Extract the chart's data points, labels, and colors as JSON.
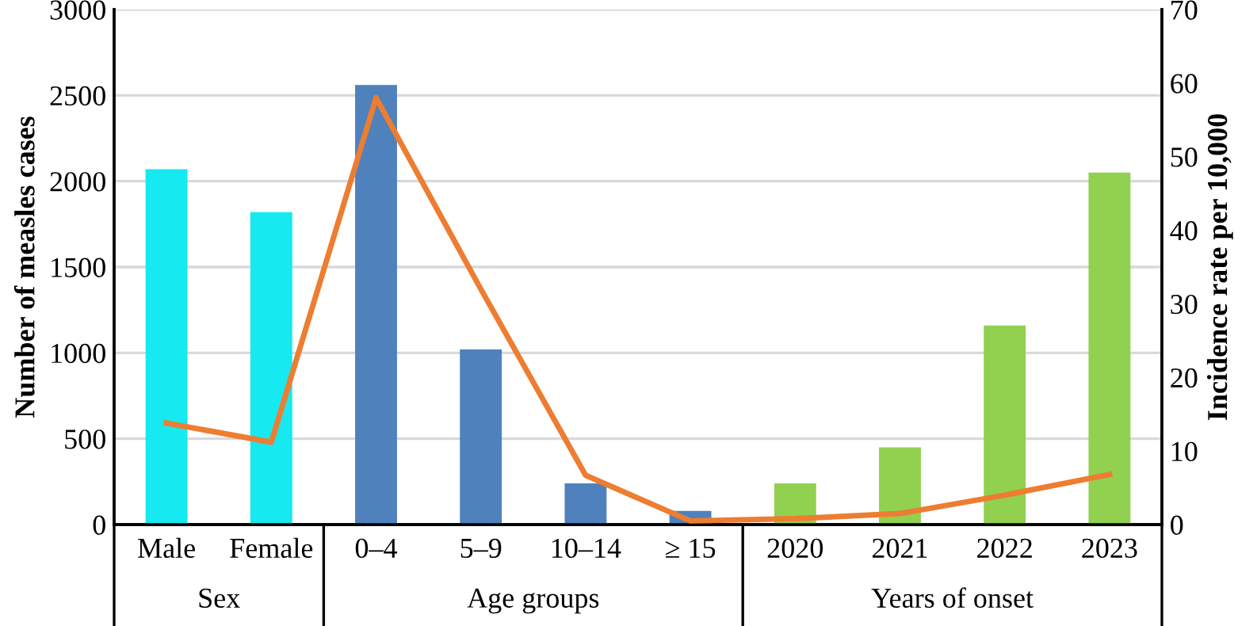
{
  "chart_data": {
    "type": "bar",
    "ylabel": "Number of measles cases",
    "y2label": "Incidence rate per 10,000",
    "categories": [
      "Male",
      "Female",
      "0–4",
      "5–9",
      "10–14",
      "≥ 15",
      "2020",
      "2021",
      "2022",
      "2023"
    ],
    "series": [
      {
        "colors": [
          "#16e9f0",
          "#16e9f0",
          "#4f81bd",
          "#4f81bd",
          "#4f81bd",
          "#4f81bd",
          "#92d050",
          "#92d050",
          "#92d050",
          "#92d050"
        ],
        "values": [
          2070,
          1820,
          2560,
          1020,
          240,
          80,
          240,
          450,
          1160,
          2050
        ]
      },
      {
        "type": "line",
        "axis": "y2",
        "color": "#ed7d31",
        "values": [
          13.8,
          11.2,
          58,
          32,
          6.7,
          0.5,
          0.8,
          1.5,
          4,
          6.8
        ]
      }
    ],
    "ylim": [
      0,
      3000
    ],
    "yticks": [
      0,
      500,
      1000,
      1500,
      2000,
      2500,
      3000
    ],
    "y2lim": [
      0,
      70
    ],
    "y2ticks": [
      0,
      10,
      20,
      30,
      40,
      50,
      60,
      70
    ],
    "grid": "y",
    "marker": "none",
    "line_style": "solid",
    "annotations": [
      "Sex",
      "Age groups",
      "Years of onset"
    ]
  }
}
